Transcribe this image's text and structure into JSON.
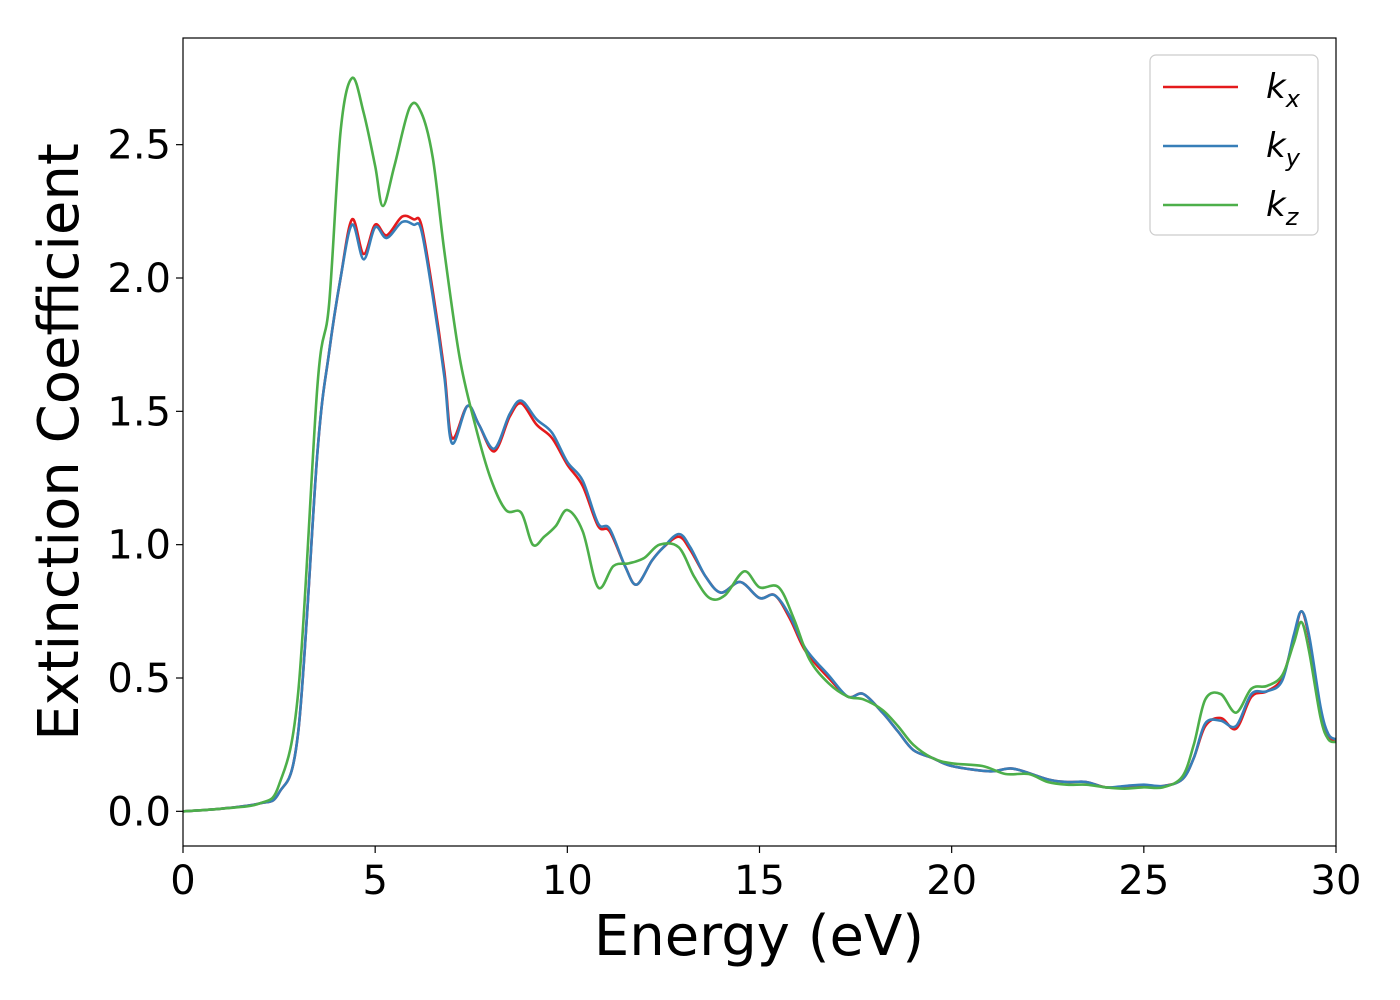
{
  "chart_data": {
    "type": "line",
    "title": "",
    "xlabel": "Energy (eV)",
    "ylabel": "Extinction Coefficient",
    "xlim": [
      0,
      30
    ],
    "ylim": [
      -0.13,
      2.9
    ],
    "xticks": [
      0,
      5,
      10,
      15,
      20,
      25,
      30
    ],
    "xtick_labels": [
      "0",
      "5",
      "10",
      "15",
      "20",
      "25",
      "30"
    ],
    "yticks": [
      0.0,
      0.5,
      1.0,
      1.5,
      2.0,
      2.5
    ],
    "ytick_labels": [
      "0.0",
      "0.5",
      "1.0",
      "1.5",
      "2.0",
      "2.5"
    ],
    "grid": false,
    "legend_position": "top-right",
    "series": [
      {
        "name": "k_x",
        "legend_main": "k",
        "legend_sub": "x",
        "color": "#e41a1c",
        "points": [
          [
            0,
            0.0
          ],
          [
            1,
            0.01
          ],
          [
            2,
            0.03
          ],
          [
            2.5,
            0.07
          ],
          [
            3,
            0.3
          ],
          [
            3.5,
            1.35
          ],
          [
            3.8,
            1.72
          ],
          [
            4.1,
            2.0
          ],
          [
            4.4,
            2.22
          ],
          [
            4.7,
            2.09
          ],
          [
            5.0,
            2.2
          ],
          [
            5.3,
            2.16
          ],
          [
            5.7,
            2.23
          ],
          [
            6.0,
            2.22
          ],
          [
            6.2,
            2.2
          ],
          [
            6.5,
            1.95
          ],
          [
            6.8,
            1.65
          ],
          [
            7.0,
            1.4
          ],
          [
            7.4,
            1.52
          ],
          [
            7.7,
            1.45
          ],
          [
            8.1,
            1.35
          ],
          [
            8.5,
            1.48
          ],
          [
            8.8,
            1.53
          ],
          [
            9.2,
            1.45
          ],
          [
            9.6,
            1.4
          ],
          [
            10.0,
            1.3
          ],
          [
            10.4,
            1.22
          ],
          [
            10.8,
            1.07
          ],
          [
            11.1,
            1.05
          ],
          [
            11.5,
            0.92
          ],
          [
            11.8,
            0.85
          ],
          [
            12.2,
            0.94
          ],
          [
            12.5,
            0.99
          ],
          [
            12.9,
            1.03
          ],
          [
            13.2,
            0.98
          ],
          [
            13.6,
            0.88
          ],
          [
            14.0,
            0.82
          ],
          [
            14.5,
            0.86
          ],
          [
            15.0,
            0.8
          ],
          [
            15.4,
            0.81
          ],
          [
            15.8,
            0.72
          ],
          [
            16.2,
            0.6
          ],
          [
            16.8,
            0.5
          ],
          [
            17.3,
            0.43
          ],
          [
            17.7,
            0.44
          ],
          [
            18.2,
            0.37
          ],
          [
            18.6,
            0.3
          ],
          [
            19.0,
            0.23
          ],
          [
            19.5,
            0.2
          ],
          [
            20.0,
            0.17
          ],
          [
            21.0,
            0.15
          ],
          [
            21.6,
            0.16
          ],
          [
            22.5,
            0.12
          ],
          [
            23.0,
            0.11
          ],
          [
            23.5,
            0.11
          ],
          [
            24.0,
            0.09
          ],
          [
            24.5,
            0.09
          ],
          [
            25.0,
            0.095
          ],
          [
            25.5,
            0.095
          ],
          [
            26.0,
            0.12
          ],
          [
            26.3,
            0.2
          ],
          [
            26.6,
            0.32
          ],
          [
            27.0,
            0.35
          ],
          [
            27.4,
            0.31
          ],
          [
            27.8,
            0.43
          ],
          [
            28.2,
            0.45
          ],
          [
            28.6,
            0.5
          ],
          [
            28.9,
            0.65
          ],
          [
            29.1,
            0.75
          ],
          [
            29.3,
            0.65
          ],
          [
            29.6,
            0.38
          ],
          [
            29.8,
            0.28
          ],
          [
            30.0,
            0.27
          ]
        ]
      },
      {
        "name": "k_y",
        "legend_main": "k",
        "legend_sub": "y",
        "color": "#377eb8",
        "points": [
          [
            0,
            0.0
          ],
          [
            1,
            0.01
          ],
          [
            2,
            0.03
          ],
          [
            2.5,
            0.07
          ],
          [
            3,
            0.3
          ],
          [
            3.5,
            1.35
          ],
          [
            3.8,
            1.72
          ],
          [
            4.1,
            2.0
          ],
          [
            4.4,
            2.2
          ],
          [
            4.7,
            2.07
          ],
          [
            5.0,
            2.19
          ],
          [
            5.3,
            2.15
          ],
          [
            5.7,
            2.21
          ],
          [
            6.0,
            2.2
          ],
          [
            6.2,
            2.18
          ],
          [
            6.5,
            1.93
          ],
          [
            6.8,
            1.63
          ],
          [
            7.0,
            1.38
          ],
          [
            7.4,
            1.52
          ],
          [
            7.7,
            1.45
          ],
          [
            8.1,
            1.36
          ],
          [
            8.5,
            1.49
          ],
          [
            8.8,
            1.54
          ],
          [
            9.2,
            1.47
          ],
          [
            9.6,
            1.42
          ],
          [
            10.0,
            1.31
          ],
          [
            10.4,
            1.24
          ],
          [
            10.8,
            1.08
          ],
          [
            11.1,
            1.06
          ],
          [
            11.5,
            0.92
          ],
          [
            11.8,
            0.85
          ],
          [
            12.2,
            0.94
          ],
          [
            12.5,
            0.99
          ],
          [
            12.9,
            1.04
          ],
          [
            13.2,
            0.99
          ],
          [
            13.6,
            0.88
          ],
          [
            14.0,
            0.82
          ],
          [
            14.5,
            0.86
          ],
          [
            15.0,
            0.8
          ],
          [
            15.4,
            0.81
          ],
          [
            15.8,
            0.73
          ],
          [
            16.2,
            0.61
          ],
          [
            16.8,
            0.51
          ],
          [
            17.3,
            0.43
          ],
          [
            17.7,
            0.44
          ],
          [
            18.2,
            0.37
          ],
          [
            18.6,
            0.3
          ],
          [
            19.0,
            0.23
          ],
          [
            19.5,
            0.2
          ],
          [
            20.0,
            0.17
          ],
          [
            21.0,
            0.15
          ],
          [
            21.6,
            0.16
          ],
          [
            22.5,
            0.12
          ],
          [
            23.0,
            0.11
          ],
          [
            23.5,
            0.11
          ],
          [
            24.0,
            0.09
          ],
          [
            24.5,
            0.095
          ],
          [
            25.0,
            0.1
          ],
          [
            25.5,
            0.095
          ],
          [
            26.0,
            0.12
          ],
          [
            26.3,
            0.2
          ],
          [
            26.6,
            0.33
          ],
          [
            27.0,
            0.34
          ],
          [
            27.4,
            0.32
          ],
          [
            27.8,
            0.44
          ],
          [
            28.2,
            0.45
          ],
          [
            28.6,
            0.49
          ],
          [
            28.9,
            0.66
          ],
          [
            29.1,
            0.75
          ],
          [
            29.3,
            0.66
          ],
          [
            29.6,
            0.39
          ],
          [
            29.8,
            0.29
          ],
          [
            30.0,
            0.27
          ]
        ]
      },
      {
        "name": "k_z",
        "legend_main": "k",
        "legend_sub": "z",
        "color": "#4daf4a",
        "points": [
          [
            0,
            0.0
          ],
          [
            1,
            0.01
          ],
          [
            2,
            0.03
          ],
          [
            2.5,
            0.1
          ],
          [
            3,
            0.45
          ],
          [
            3.5,
            1.6
          ],
          [
            3.8,
            1.9
          ],
          [
            4.1,
            2.55
          ],
          [
            4.4,
            2.75
          ],
          [
            4.7,
            2.62
          ],
          [
            5.0,
            2.42
          ],
          [
            5.2,
            2.27
          ],
          [
            5.5,
            2.42
          ],
          [
            5.9,
            2.64
          ],
          [
            6.2,
            2.62
          ],
          [
            6.5,
            2.45
          ],
          [
            6.8,
            2.1
          ],
          [
            7.2,
            1.7
          ],
          [
            7.6,
            1.45
          ],
          [
            8.0,
            1.25
          ],
          [
            8.4,
            1.13
          ],
          [
            8.8,
            1.12
          ],
          [
            9.1,
            1.0
          ],
          [
            9.4,
            1.03
          ],
          [
            9.7,
            1.07
          ],
          [
            10.0,
            1.13
          ],
          [
            10.4,
            1.05
          ],
          [
            10.8,
            0.84
          ],
          [
            11.2,
            0.92
          ],
          [
            11.6,
            0.93
          ],
          [
            12.0,
            0.95
          ],
          [
            12.4,
            1.0
          ],
          [
            12.9,
            0.99
          ],
          [
            13.3,
            0.88
          ],
          [
            13.7,
            0.8
          ],
          [
            14.1,
            0.81
          ],
          [
            14.6,
            0.9
          ],
          [
            15.0,
            0.84
          ],
          [
            15.5,
            0.84
          ],
          [
            15.9,
            0.72
          ],
          [
            16.3,
            0.57
          ],
          [
            16.8,
            0.48
          ],
          [
            17.3,
            0.43
          ],
          [
            17.7,
            0.42
          ],
          [
            18.2,
            0.38
          ],
          [
            18.6,
            0.32
          ],
          [
            19.0,
            0.25
          ],
          [
            19.5,
            0.2
          ],
          [
            20.0,
            0.18
          ],
          [
            20.8,
            0.17
          ],
          [
            21.4,
            0.14
          ],
          [
            22.0,
            0.14
          ],
          [
            22.5,
            0.11
          ],
          [
            23.0,
            0.1
          ],
          [
            23.5,
            0.1
          ],
          [
            24.0,
            0.09
          ],
          [
            24.5,
            0.085
          ],
          [
            25.0,
            0.09
          ],
          [
            25.5,
            0.09
          ],
          [
            26.0,
            0.13
          ],
          [
            26.3,
            0.25
          ],
          [
            26.6,
            0.42
          ],
          [
            27.0,
            0.44
          ],
          [
            27.4,
            0.37
          ],
          [
            27.8,
            0.46
          ],
          [
            28.2,
            0.47
          ],
          [
            28.6,
            0.51
          ],
          [
            28.9,
            0.63
          ],
          [
            29.1,
            0.71
          ],
          [
            29.3,
            0.6
          ],
          [
            29.6,
            0.35
          ],
          [
            29.8,
            0.27
          ],
          [
            30.0,
            0.26
          ]
        ]
      }
    ]
  }
}
